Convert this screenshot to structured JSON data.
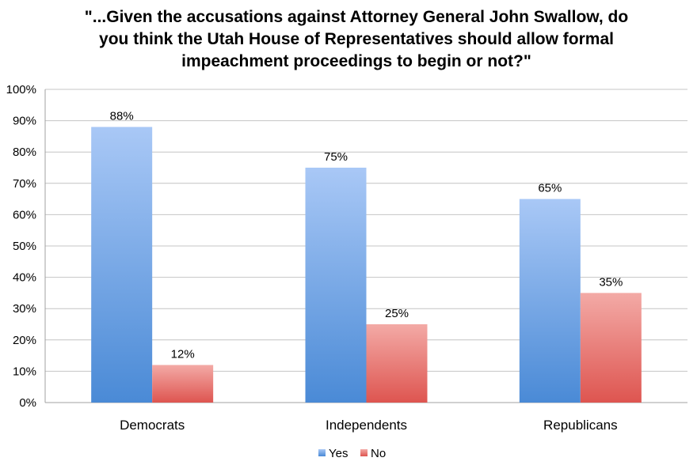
{
  "chart_data": {
    "type": "bar",
    "title": "\"...Given the accusations against Attorney General John Swallow, do you think the Utah House of Representatives should allow formal impeachment proceedings to begin or not?\"",
    "title_lines": [
      "\"...Given the accusations against Attorney General John Swallow, do",
      "you think the Utah House of Representatives should allow formal",
      "impeachment proceedings to begin or not?\""
    ],
    "categories": [
      "Democrats",
      "Independents",
      "Republicans"
    ],
    "series": [
      {
        "name": "Yes",
        "values": [
          88,
          75,
          65
        ],
        "labels": [
          "88%",
          "75%",
          "65%"
        ],
        "color_top": "#a9c8f6",
        "color_bottom": "#4a8ad6"
      },
      {
        "name": "No",
        "values": [
          12,
          25,
          35
        ],
        "labels": [
          "12%",
          "25%",
          "35%"
        ],
        "color_top": "#f3aaa6",
        "color_bottom": "#de5550"
      }
    ],
    "ylim": [
      0,
      100
    ],
    "yticks": [
      0,
      10,
      20,
      30,
      40,
      50,
      60,
      70,
      80,
      90,
      100
    ],
    "ytick_labels": [
      "0%",
      "10%",
      "20%",
      "30%",
      "40%",
      "50%",
      "60%",
      "70%",
      "80%",
      "90%",
      "100%"
    ],
    "grid": true,
    "legend_position": "bottom"
  }
}
